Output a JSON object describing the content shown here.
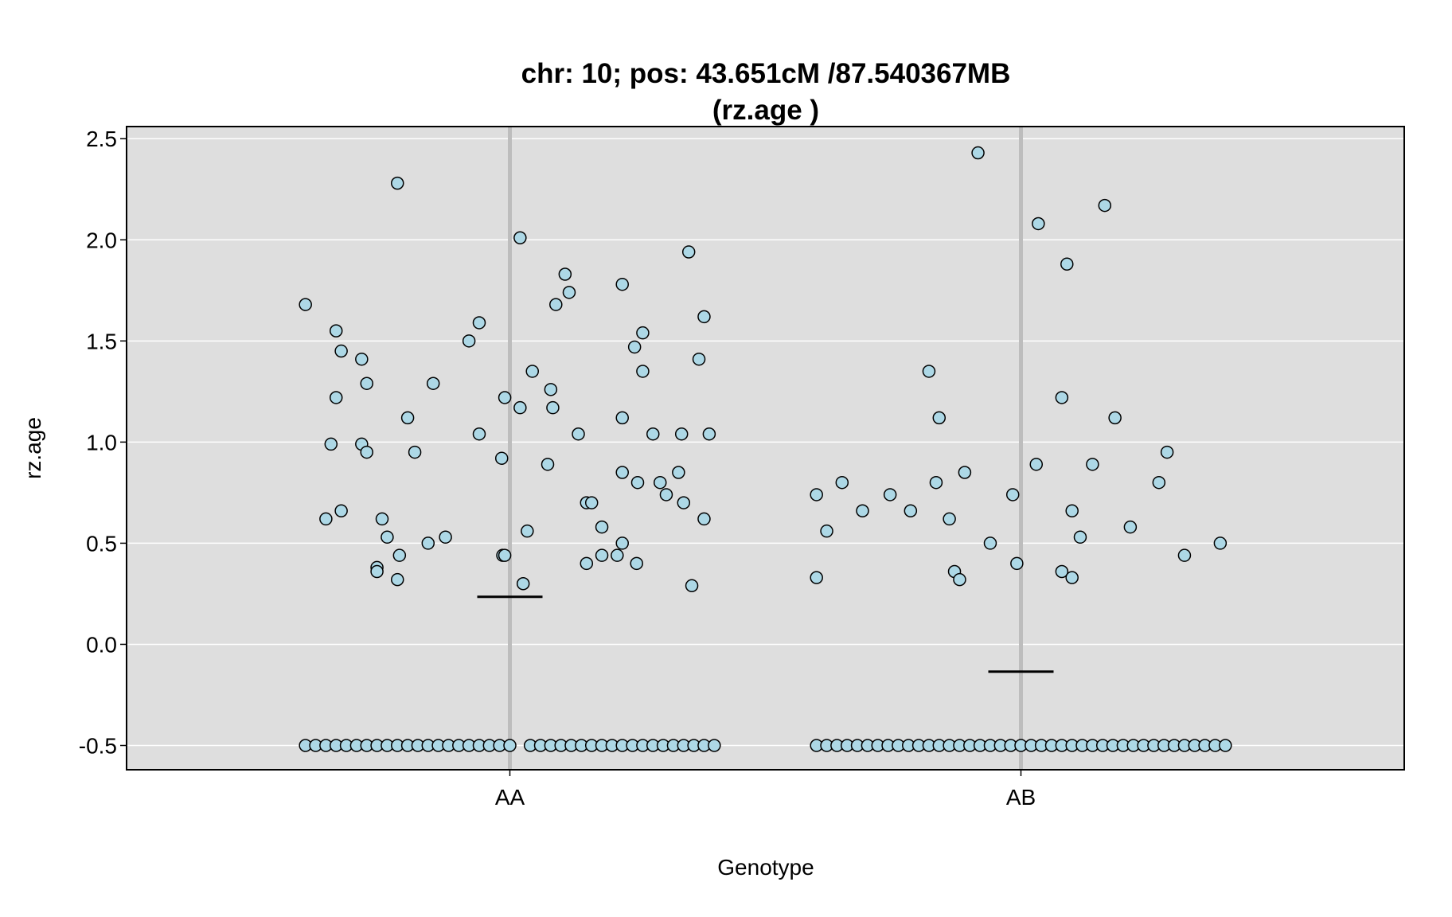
{
  "chart_data": {
    "type": "scatter",
    "title_line1": "chr: 10; pos: 43.651cM /87.540367MB",
    "title_line2": "(rz.age )",
    "xlabel": "Genotype",
    "ylabel": "rz.age",
    "categories": [
      "AA",
      "AB"
    ],
    "ylim": [
      -0.62,
      2.56
    ],
    "yticks": [
      -0.5,
      0.0,
      0.5,
      1.0,
      1.5,
      2.0,
      2.5
    ],
    "ytick_labels": [
      "-0.5",
      "0.0",
      "0.5",
      "1.0",
      "1.5",
      "2.0",
      "2.5"
    ],
    "grid": true,
    "colors": {
      "panel_background": "#dedede",
      "grid": "#ffffff",
      "category_line": "#bdbdbd",
      "point_fill": "#add8e6",
      "point_stroke": "#000000",
      "mean_line": "#000000"
    },
    "groups": [
      {
        "category": "AA",
        "mean": 0.235,
        "points": [
          [
            -0.2,
            1.68
          ],
          [
            -0.18,
            0.62
          ],
          [
            -0.175,
            0.99
          ],
          [
            -0.17,
            1.55
          ],
          [
            -0.17,
            1.22
          ],
          [
            -0.165,
            0.66
          ],
          [
            -0.165,
            1.45
          ],
          [
            -0.145,
            1.41
          ],
          [
            -0.145,
            0.99
          ],
          [
            -0.14,
            1.29
          ],
          [
            -0.14,
            0.95
          ],
          [
            -0.13,
            0.38
          ],
          [
            -0.13,
            0.36
          ],
          [
            -0.125,
            0.62
          ],
          [
            -0.12,
            0.53
          ],
          [
            -0.11,
            2.28
          ],
          [
            -0.108,
            0.44
          ],
          [
            -0.11,
            0.32
          ],
          [
            -0.1,
            1.12
          ],
          [
            -0.093,
            0.95
          ],
          [
            -0.08,
            0.5
          ],
          [
            -0.075,
            1.29
          ],
          [
            -0.063,
            0.53
          ],
          [
            -0.04,
            1.5
          ],
          [
            -0.03,
            1.04
          ],
          [
            -0.03,
            1.59
          ],
          [
            -0.008,
            0.92
          ],
          [
            -0.007,
            0.44
          ],
          [
            -0.005,
            0.44
          ],
          [
            -0.005,
            1.22
          ],
          [
            0.01,
            1.17
          ],
          [
            0.01,
            2.01
          ],
          [
            0.013,
            0.3
          ],
          [
            0.017,
            0.56
          ],
          [
            0.022,
            1.35
          ],
          [
            0.037,
            0.89
          ],
          [
            0.04,
            1.26
          ],
          [
            0.042,
            1.17
          ],
          [
            0.045,
            1.68
          ],
          [
            0.054,
            1.83
          ],
          [
            0.058,
            1.74
          ],
          [
            0.067,
            1.04
          ],
          [
            0.075,
            0.7
          ],
          [
            0.075,
            0.4
          ],
          [
            0.08,
            0.7
          ],
          [
            0.09,
            0.58
          ],
          [
            0.09,
            0.44
          ],
          [
            0.105,
            0.44
          ],
          [
            0.11,
            0.85
          ],
          [
            0.11,
            1.78
          ],
          [
            0.11,
            0.5
          ],
          [
            0.11,
            1.12
          ],
          [
            0.122,
            1.47
          ],
          [
            0.124,
            0.4
          ],
          [
            0.125,
            0.8
          ],
          [
            0.13,
            1.54
          ],
          [
            0.13,
            1.35
          ],
          [
            0.14,
            1.04
          ],
          [
            0.147,
            0.8
          ],
          [
            0.153,
            0.74
          ],
          [
            0.165,
            0.85
          ],
          [
            0.168,
            1.04
          ],
          [
            0.17,
            0.7
          ],
          [
            0.175,
            1.94
          ],
          [
            0.178,
            0.29
          ],
          [
            0.185,
            1.41
          ],
          [
            0.19,
            1.62
          ],
          [
            0.19,
            0.62
          ],
          [
            0.195,
            1.04
          ],
          [
            -0.2,
            -0.5
          ],
          [
            -0.19,
            -0.5
          ],
          [
            -0.18,
            -0.5
          ],
          [
            -0.17,
            -0.5
          ],
          [
            -0.16,
            -0.5
          ],
          [
            -0.15,
            -0.5
          ],
          [
            -0.14,
            -0.5
          ],
          [
            -0.13,
            -0.5
          ],
          [
            -0.12,
            -0.5
          ],
          [
            -0.11,
            -0.5
          ],
          [
            -0.1,
            -0.5
          ],
          [
            -0.09,
            -0.5
          ],
          [
            -0.08,
            -0.5
          ],
          [
            -0.07,
            -0.5
          ],
          [
            -0.06,
            -0.5
          ],
          [
            -0.05,
            -0.5
          ],
          [
            -0.04,
            -0.5
          ],
          [
            -0.03,
            -0.5
          ],
          [
            -0.02,
            -0.5
          ],
          [
            -0.01,
            -0.5
          ],
          [
            0.0,
            -0.5
          ],
          [
            0.02,
            -0.5
          ],
          [
            0.03,
            -0.5
          ],
          [
            0.04,
            -0.5
          ],
          [
            0.05,
            -0.5
          ],
          [
            0.06,
            -0.5
          ],
          [
            0.07,
            -0.5
          ],
          [
            0.08,
            -0.5
          ],
          [
            0.09,
            -0.5
          ],
          [
            0.1,
            -0.5
          ],
          [
            0.11,
            -0.5
          ],
          [
            0.12,
            -0.5
          ],
          [
            0.13,
            -0.5
          ],
          [
            0.14,
            -0.5
          ],
          [
            0.15,
            -0.5
          ],
          [
            0.16,
            -0.5
          ],
          [
            0.17,
            -0.5
          ],
          [
            0.18,
            -0.5
          ],
          [
            0.19,
            -0.5
          ],
          [
            0.2,
            -0.5
          ]
        ]
      },
      {
        "category": "AB",
        "mean": -0.135,
        "points": [
          [
            -0.2,
            0.33
          ],
          [
            -0.2,
            0.74
          ],
          [
            -0.19,
            0.56
          ],
          [
            -0.175,
            0.8
          ],
          [
            -0.155,
            0.66
          ],
          [
            -0.128,
            0.74
          ],
          [
            -0.108,
            0.66
          ],
          [
            -0.09,
            1.35
          ],
          [
            -0.083,
            0.8
          ],
          [
            -0.08,
            1.12
          ],
          [
            -0.07,
            0.62
          ],
          [
            -0.065,
            0.36
          ],
          [
            -0.06,
            0.32
          ],
          [
            -0.055,
            0.85
          ],
          [
            -0.042,
            2.43
          ],
          [
            -0.03,
            0.5
          ],
          [
            -0.008,
            0.74
          ],
          [
            -0.004,
            0.4
          ],
          [
            0.015,
            0.89
          ],
          [
            0.017,
            2.08
          ],
          [
            0.04,
            0.36
          ],
          [
            0.04,
            1.22
          ],
          [
            0.045,
            1.88
          ],
          [
            0.05,
            0.33
          ],
          [
            0.05,
            0.66
          ],
          [
            0.058,
            0.53
          ],
          [
            0.07,
            0.89
          ],
          [
            0.082,
            2.17
          ],
          [
            0.092,
            1.12
          ],
          [
            0.107,
            0.58
          ],
          [
            0.135,
            0.8
          ],
          [
            0.143,
            0.95
          ],
          [
            0.16,
            0.44
          ],
          [
            0.195,
            0.5
          ],
          [
            -0.2,
            -0.5
          ],
          [
            -0.19,
            -0.5
          ],
          [
            -0.18,
            -0.5
          ],
          [
            -0.17,
            -0.5
          ],
          [
            -0.16,
            -0.5
          ],
          [
            -0.15,
            -0.5
          ],
          [
            -0.14,
            -0.5
          ],
          [
            -0.13,
            -0.5
          ],
          [
            -0.12,
            -0.5
          ],
          [
            -0.11,
            -0.5
          ],
          [
            -0.1,
            -0.5
          ],
          [
            -0.09,
            -0.5
          ],
          [
            -0.08,
            -0.5
          ],
          [
            -0.07,
            -0.5
          ],
          [
            -0.06,
            -0.5
          ],
          [
            -0.05,
            -0.5
          ],
          [
            -0.04,
            -0.5
          ],
          [
            -0.03,
            -0.5
          ],
          [
            -0.02,
            -0.5
          ],
          [
            -0.01,
            -0.5
          ],
          [
            0.0,
            -0.5
          ],
          [
            0.01,
            -0.5
          ],
          [
            0.02,
            -0.5
          ],
          [
            0.03,
            -0.5
          ],
          [
            0.04,
            -0.5
          ],
          [
            0.05,
            -0.5
          ],
          [
            0.06,
            -0.5
          ],
          [
            0.07,
            -0.5
          ],
          [
            0.08,
            -0.5
          ],
          [
            0.09,
            -0.5
          ],
          [
            0.1,
            -0.5
          ],
          [
            0.11,
            -0.5
          ],
          [
            0.12,
            -0.5
          ],
          [
            0.13,
            -0.5
          ],
          [
            0.14,
            -0.5
          ],
          [
            0.15,
            -0.5
          ],
          [
            0.16,
            -0.5
          ],
          [
            0.17,
            -0.5
          ],
          [
            0.18,
            -0.5
          ],
          [
            0.19,
            -0.5
          ],
          [
            0.2,
            -0.5
          ]
        ]
      }
    ]
  }
}
